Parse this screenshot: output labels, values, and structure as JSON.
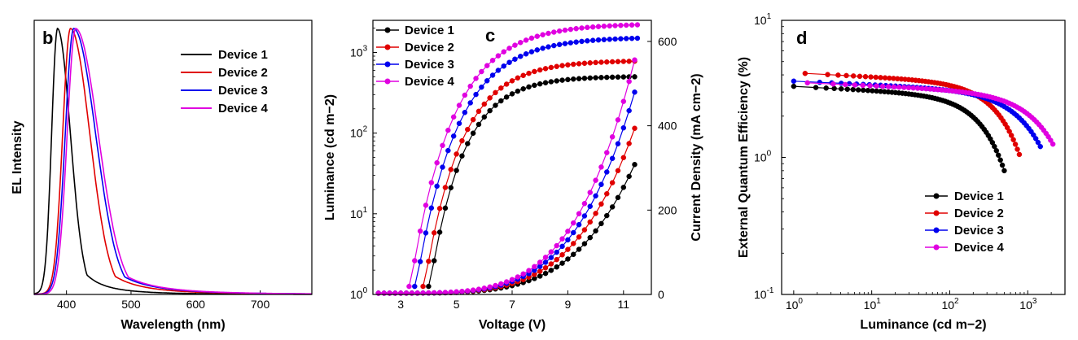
{
  "chart_data": [
    {
      "panel_label": "b",
      "type": "line",
      "xlabel": "Wavelength (nm)",
      "ylabel": "EL Intensity",
      "xlim": [
        350,
        780
      ],
      "xticks": [
        "400",
        "500",
        "600",
        "700"
      ],
      "legend_position": "top-right",
      "series": [
        {
          "name": "Device 1",
          "color": "#000000",
          "peak": 386,
          "sigma_left": 9,
          "sigma_right": 20
        },
        {
          "name": "Device 2",
          "color": "#e00000",
          "peak": 406,
          "sigma_left": 12,
          "sigma_right": 30
        },
        {
          "name": "Device 3",
          "color": "#0000ee",
          "peak": 411,
          "sigma_left": 13,
          "sigma_right": 34
        },
        {
          "name": "Device 4",
          "color": "#e000e0",
          "peak": 414,
          "sigma_left": 13,
          "sigma_right": 35
        }
      ]
    },
    {
      "panel_label": "c",
      "type": "line",
      "xlabel": "Voltage (V)",
      "ylabel_left": "Luminance (cd m−2)",
      "ylabel_right": "Current Density (mA cm−2)",
      "xlim": [
        2,
        12
      ],
      "xticks": [
        "3",
        "5",
        "7",
        "9",
        "11"
      ],
      "ylim_left": [
        1,
        2500
      ],
      "yscale_left": "log",
      "yticks_left": [
        "10",
        "10",
        "10",
        "10"
      ],
      "yticks_left_exp": [
        "0",
        "1",
        "2",
        "3"
      ],
      "ylim_right": [
        0,
        650
      ],
      "yticks_right": [
        "0",
        "200",
        "400",
        "600"
      ],
      "legend_position": "top-left",
      "series": [
        {
          "name": "Device 1",
          "color": "#000000",
          "luminance_onset_v": 4.0,
          "luminance_end": 500,
          "luminance_scale": 1.5,
          "current_end": 320,
          "current_exp": 4.5
        },
        {
          "name": "Device 2",
          "color": "#e00000",
          "luminance_onset_v": 3.8,
          "luminance_end": 780,
          "luminance_scale": 1.4,
          "current_end": 410,
          "current_exp": 4.5
        },
        {
          "name": "Device 3",
          "color": "#0000ee",
          "luminance_onset_v": 3.5,
          "luminance_end": 1500,
          "luminance_scale": 1.3,
          "current_end": 500,
          "current_exp": 4.5
        },
        {
          "name": "Device 4",
          "color": "#e000e0",
          "luminance_onset_v": 3.3,
          "luminance_end": 2200,
          "luminance_scale": 1.3,
          "current_end": 580,
          "current_exp": 4.5
        }
      ]
    },
    {
      "panel_label": "d",
      "type": "line",
      "xlabel": "Luminance (cd m−2)",
      "ylabel": "External Quantum Efficiency (%)",
      "xscale": "log",
      "yscale": "log",
      "xlim": [
        0.7,
        3000
      ],
      "ylim": [
        0.1,
        10
      ],
      "xticks": [
        "10",
        "10",
        "10",
        "10"
      ],
      "xticks_exp": [
        "0",
        "1",
        "2",
        "3"
      ],
      "yticks": [
        "10",
        "10",
        "10"
      ],
      "yticks_exp": [
        "-1",
        "0",
        "1"
      ],
      "legend_position": "bottom-right",
      "series": [
        {
          "name": "Device 1",
          "color": "#000000",
          "x_start": 1.0,
          "x_end": 500,
          "y_start": 3.3,
          "y_end": 0.8,
          "rolloff": 0.12
        },
        {
          "name": "Device 2",
          "color": "#e00000",
          "x_start": 1.4,
          "x_end": 780,
          "y_start": 4.1,
          "y_end": 1.05,
          "rolloff": 0.12
        },
        {
          "name": "Device 3",
          "color": "#0000ee",
          "x_start": 1.0,
          "x_end": 1450,
          "y_start": 3.6,
          "y_end": 1.2,
          "rolloff": 0.12
        },
        {
          "name": "Device 4",
          "color": "#e000e0",
          "x_start": 1.5,
          "x_end": 2100,
          "y_start": 3.5,
          "y_end": 1.25,
          "rolloff": 0.12
        }
      ]
    }
  ]
}
